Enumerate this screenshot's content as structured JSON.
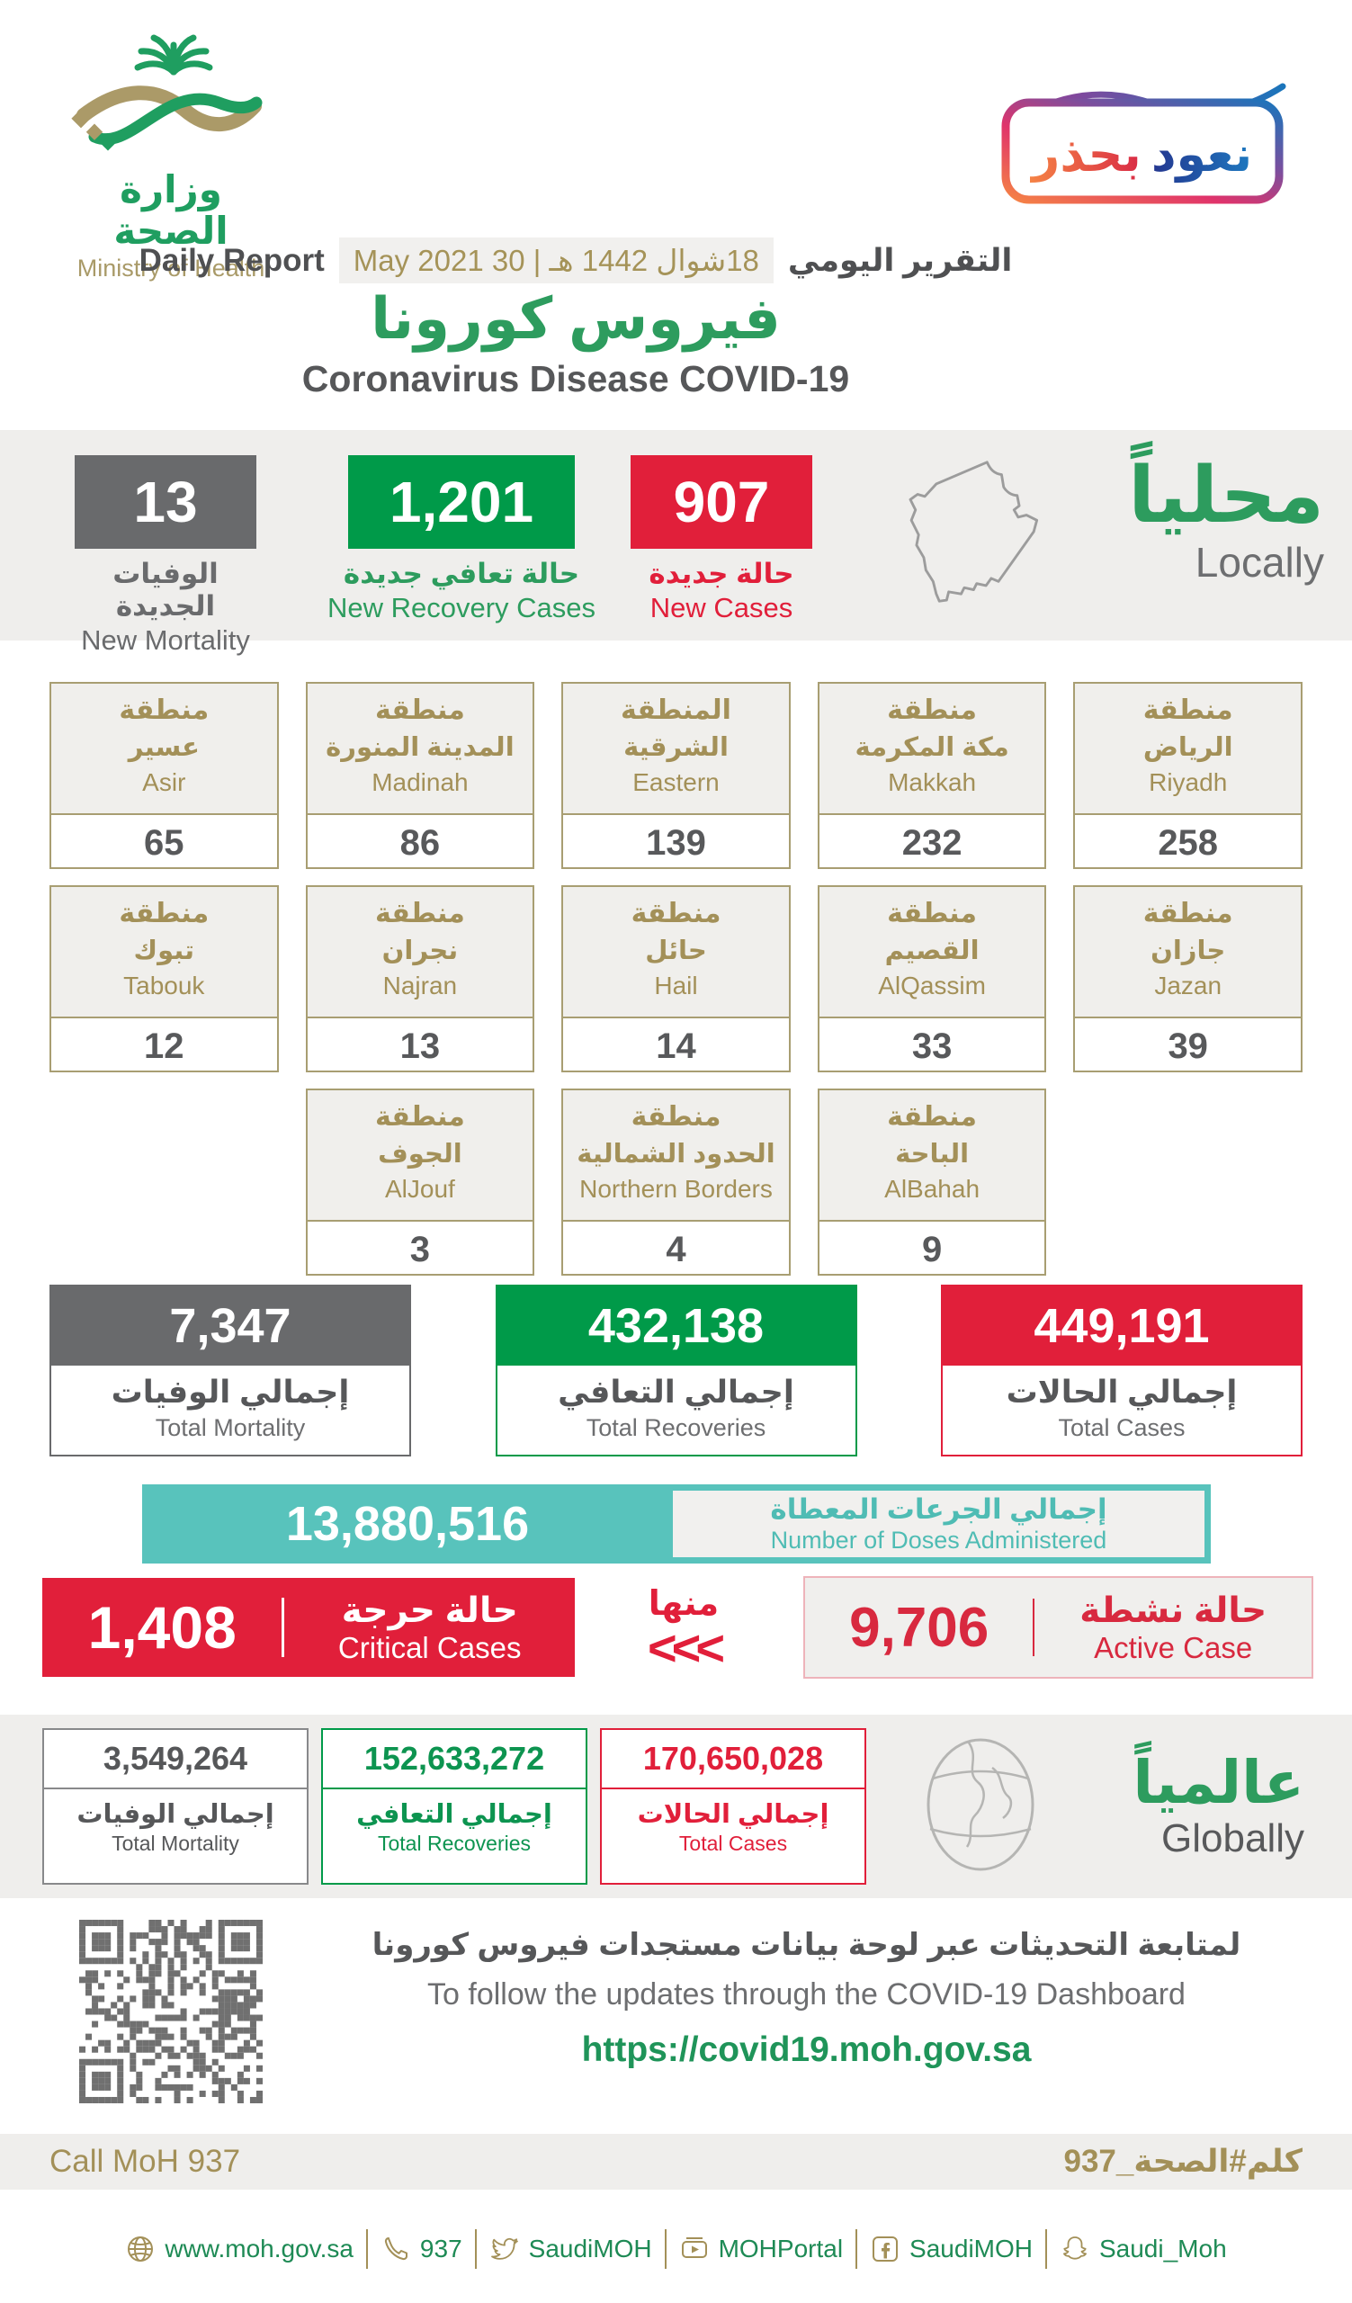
{
  "colors": {
    "brand_green": "#2D9C5E",
    "box_green": "#009A49",
    "red": "#E11F3A",
    "gray": "#696A6C",
    "gold": "#A39058",
    "teal": "#58C3BC",
    "dark_text": "#565759",
    "band_bg": "#EFEEEC"
  },
  "header": {
    "ministry_ar": "وزارة الصحة",
    "ministry_en": "Ministry of Health",
    "badge_ar": "نعود بحذر",
    "report_label_en": "Daily Report",
    "report_label_ar": "التقرير اليومي",
    "date_line": "18شوال 1442 هـ | 30 May 2021",
    "title_ar": "فيروس كورونا",
    "title_en": "Coronavirus Disease COVID-19"
  },
  "locally": {
    "heading_ar": "محلياً",
    "heading_en": "Locally",
    "new_mortality": {
      "value": "13",
      "label_ar": "الوفيات الجديدة",
      "label_en": "New Mortality"
    },
    "new_recoveries": {
      "value": "1,201",
      "label_ar": "حالة تعافي جديدة",
      "label_en": "New Recovery Cases"
    },
    "new_cases": {
      "value": "907",
      "label_ar": "حالة جديدة",
      "label_en": "New Cases"
    }
  },
  "regions": [
    {
      "prefix_ar": "منطقة",
      "name_ar": "عسير",
      "name_en": "Asir",
      "value": "65"
    },
    {
      "prefix_ar": "منطقة",
      "name_ar": "المدينة المنورة",
      "name_en": "Madinah",
      "value": "86"
    },
    {
      "prefix_ar": "المنطقة",
      "name_ar": "الشرقية",
      "name_en": "Eastern",
      "value": "139"
    },
    {
      "prefix_ar": "منطقة",
      "name_ar": "مكة المكرمة",
      "name_en": "Makkah",
      "value": "232"
    },
    {
      "prefix_ar": "منطقة",
      "name_ar": "الرياض",
      "name_en": "Riyadh",
      "value": "258"
    },
    {
      "prefix_ar": "منطقة",
      "name_ar": "تبوك",
      "name_en": "Tabouk",
      "value": "12"
    },
    {
      "prefix_ar": "منطقة",
      "name_ar": "نجران",
      "name_en": "Najran",
      "value": "13"
    },
    {
      "prefix_ar": "منطقة",
      "name_ar": "حائل",
      "name_en": "Hail",
      "value": "14"
    },
    {
      "prefix_ar": "منطقة",
      "name_ar": "القصيم",
      "name_en": "AlQassim",
      "value": "33"
    },
    {
      "prefix_ar": "منطقة",
      "name_ar": "جازان",
      "name_en": "Jazan",
      "value": "39"
    },
    {
      "prefix_ar": "منطقة",
      "name_ar": "الجوف",
      "name_en": "AlJouf",
      "value": "3"
    },
    {
      "prefix_ar": "منطقة",
      "name_ar": "الحدود الشمالية",
      "name_en": "Northern Borders",
      "value": "4"
    },
    {
      "prefix_ar": "منطقة",
      "name_ar": "الباحة",
      "name_en": "AlBahah",
      "value": "9"
    }
  ],
  "totals": {
    "mortality": {
      "value": "7,347",
      "label_ar": "إجمالي الوفيات",
      "label_en": "Total Mortality"
    },
    "recoveries": {
      "value": "432,138",
      "label_ar": "إجمالي التعافي",
      "label_en": "Total Recoveries"
    },
    "cases": {
      "value": "449,191",
      "label_ar": "إجمالي الحالات",
      "label_en": "Total Cases"
    }
  },
  "doses": {
    "value": "13,880,516",
    "label_ar": "إجمالي الجرعات المعطاة",
    "label_en": "Number of Doses Administered"
  },
  "critical": {
    "value": "1,408",
    "label_ar": "حالة حرجة",
    "label_en": "Critical Cases"
  },
  "of_which": {
    "label_ar": "منها",
    "chevrons": "<<<"
  },
  "active": {
    "value": "9,706",
    "label_ar": "حالة نشطة",
    "label_en": "Active Case"
  },
  "globally": {
    "heading_ar": "عالمياً",
    "heading_en": "Globally",
    "mortality": {
      "value": "3,549,264",
      "label_ar": "إجمالي الوفيات",
      "label_en": "Total Mortality"
    },
    "recoveries": {
      "value": "152,633,272",
      "label_ar": "إجمالي التعافي",
      "label_en": "Total Recoveries"
    },
    "cases": {
      "value": "170,650,028",
      "label_ar": "إجمالي الحالات",
      "label_en": "Total Cases"
    }
  },
  "dashboard": {
    "text_ar": "لمتابعة التحديثات عبر لوحة بيانات مستجدات فيروس كورونا",
    "text_en": "To follow the updates through the COVID-19 Dashboard",
    "url": "https://covid19.moh.gov.sa"
  },
  "footer": {
    "call_en": "Call MoH 937",
    "call_ar": "كلم#الصحة_937",
    "links": [
      {
        "icon": "globe-icon",
        "text": "www.moh.gov.sa"
      },
      {
        "icon": "phone-icon",
        "text": "937"
      },
      {
        "icon": "twitter-icon",
        "text": "SaudiMOH"
      },
      {
        "icon": "youtube-icon",
        "text": "MOHPortal"
      },
      {
        "icon": "facebook-icon",
        "text": "SaudiMOH"
      },
      {
        "icon": "snapchat-icon",
        "text": "Saudi_Moh"
      }
    ]
  }
}
